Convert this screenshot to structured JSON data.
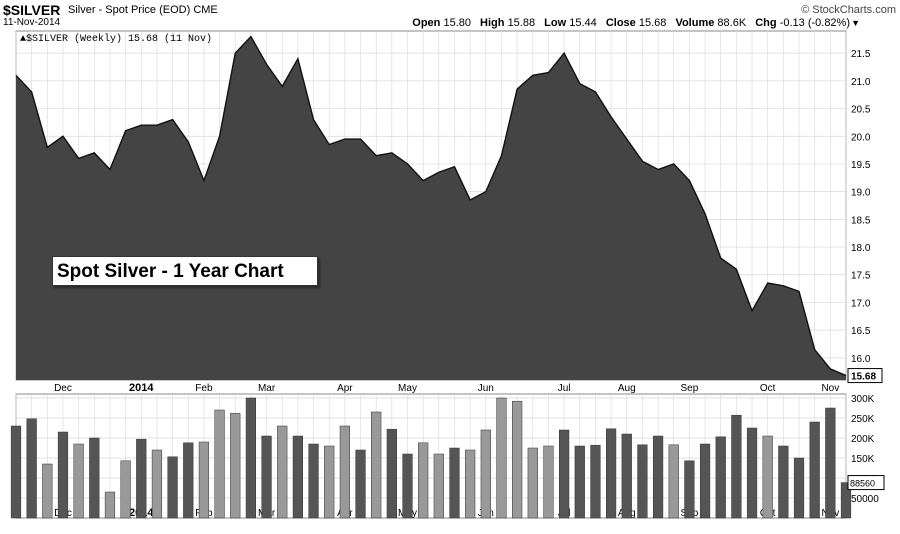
{
  "header": {
    "symbol": "$SILVER",
    "description": "Silver - Spot Price (EOD)",
    "exchange": "CME",
    "site": "© StockCharts.com",
    "date": "11-Nov-2014",
    "open_label": "Open",
    "open": "15.80",
    "high_label": "High",
    "high": "15.88",
    "low_label": "Low",
    "low": "15.44",
    "close_label": "Close",
    "close": "15.68",
    "volume_label": "Volume",
    "volume": "88.6K",
    "chg_label": "Chg",
    "chg": "-0.13 (-0.82%)",
    "dropdown_icon": "triangle-down-icon"
  },
  "legend": "▲$SILVER (Weekly) 15.68 (11 Nov)",
  "overlay_title": "Spot Silver - 1 Year Chart",
  "colors": {
    "area_fill": "#444444",
    "vol_dark": "#555555",
    "vol_light": "#999999",
    "grid": "#d8d8d8"
  },
  "chart_data": [
    {
      "type": "area",
      "series_name": "$SILVER (Weekly)",
      "y_ticks": [
        16.0,
        16.5,
        17.0,
        17.5,
        18.0,
        18.5,
        19.0,
        19.5,
        20.0,
        20.5,
        21.0,
        21.5
      ],
      "ylim": [
        15.6,
        21.9
      ],
      "last_value_label": "15.68",
      "x_labels": [
        "Dec",
        "2014",
        "Feb",
        "Mar",
        "Apr",
        "May",
        "Jun",
        "Jul",
        "Aug",
        "Sep",
        "Oct",
        "Nov"
      ],
      "values": [
        21.1,
        20.8,
        19.8,
        20.0,
        19.6,
        19.7,
        19.4,
        20.1,
        20.2,
        20.2,
        20.3,
        19.9,
        19.2,
        20.0,
        21.5,
        21.8,
        21.3,
        20.9,
        21.4,
        20.3,
        19.85,
        19.95,
        19.95,
        19.65,
        19.7,
        19.5,
        19.2,
        19.35,
        19.45,
        18.85,
        19.0,
        19.65,
        20.85,
        21.1,
        21.15,
        21.5,
        20.95,
        20.8,
        20.35,
        19.95,
        19.55,
        19.4,
        19.5,
        19.2,
        18.6,
        17.8,
        17.6,
        16.85,
        17.35,
        17.3,
        17.2,
        16.15,
        15.8,
        15.68
      ]
    },
    {
      "type": "bar",
      "series_name": "Volume",
      "y_ticks": [
        50000,
        100000,
        150000,
        200000,
        250000,
        300000
      ],
      "y_tick_labels": [
        "50000",
        "100K",
        "150K",
        "200K",
        "250K",
        "300K"
      ],
      "ylim": [
        0,
        310000
      ],
      "last_value_label": "88560",
      "values": [
        230000,
        248000,
        135000,
        215000,
        185000,
        200000,
        65000,
        143000,
        197000,
        170000,
        153000,
        188000,
        190000,
        270000,
        262000,
        300000,
        205000,
        230000,
        205000,
        185000,
        180000,
        230000,
        170000,
        265000,
        222000,
        160000,
        188000,
        160000,
        175000,
        170000,
        220000,
        300000,
        292000,
        175000,
        180000,
        220000,
        180000,
        182000,
        223000,
        210000,
        183000,
        205000,
        183000,
        143000,
        185000,
        203000,
        257000,
        225000,
        205000,
        180000,
        150000,
        240000,
        275000,
        88560
      ],
      "shade": [
        "d",
        "d",
        "l",
        "d",
        "l",
        "d",
        "l",
        "l",
        "d",
        "l",
        "d",
        "d",
        "l",
        "l",
        "l",
        "d",
        "d",
        "l",
        "d",
        "d",
        "l",
        "l",
        "d",
        "l",
        "d",
        "d",
        "l",
        "l",
        "d",
        "l",
        "l",
        "l",
        "l",
        "l",
        "l",
        "d",
        "d",
        "d",
        "d",
        "d",
        "d",
        "d",
        "l",
        "d",
        "d",
        "d",
        "d",
        "d",
        "l",
        "d",
        "d",
        "d",
        "d",
        "d"
      ]
    }
  ]
}
